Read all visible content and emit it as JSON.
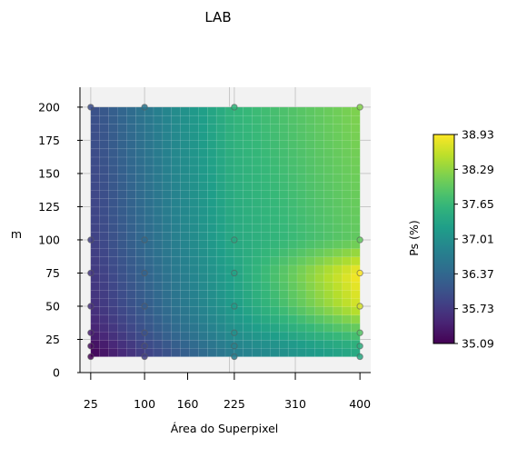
{
  "chart_data": {
    "type": "heatmap",
    "title": "LAB",
    "xlabel": "Área do Superpixel",
    "ylabel": "m",
    "x_ticks": [
      25,
      100,
      160,
      225,
      310,
      400
    ],
    "y_ticks": [
      0,
      25,
      50,
      75,
      100,
      125,
      150,
      175,
      200
    ],
    "xlim": [
      10,
      415
    ],
    "ylim": [
      0,
      215
    ],
    "colorbar": {
      "label": "Ps (%)",
      "ticks": [
        "35.09",
        "35.73",
        "36.37",
        "37.01",
        "37.65",
        "38.29",
        "38.93"
      ],
      "min": 35.09,
      "max": 38.93,
      "colormap": "viridis"
    },
    "x": [
      25,
      100,
      225,
      400
    ],
    "y": [
      12,
      20,
      30,
      50,
      75,
      100,
      200
    ],
    "z": [
      [
        35.09,
        35.8,
        36.7,
        37.4
      ],
      [
        35.2,
        35.9,
        36.8,
        37.5
      ],
      [
        35.4,
        36.05,
        37.0,
        37.9
      ],
      [
        35.6,
        36.2,
        37.2,
        38.7
      ],
      [
        35.7,
        36.3,
        37.3,
        38.93
      ],
      [
        35.8,
        36.4,
        37.4,
        38.0
      ],
      [
        36.0,
        36.6,
        37.6,
        38.2
      ]
    ],
    "grid": true
  }
}
